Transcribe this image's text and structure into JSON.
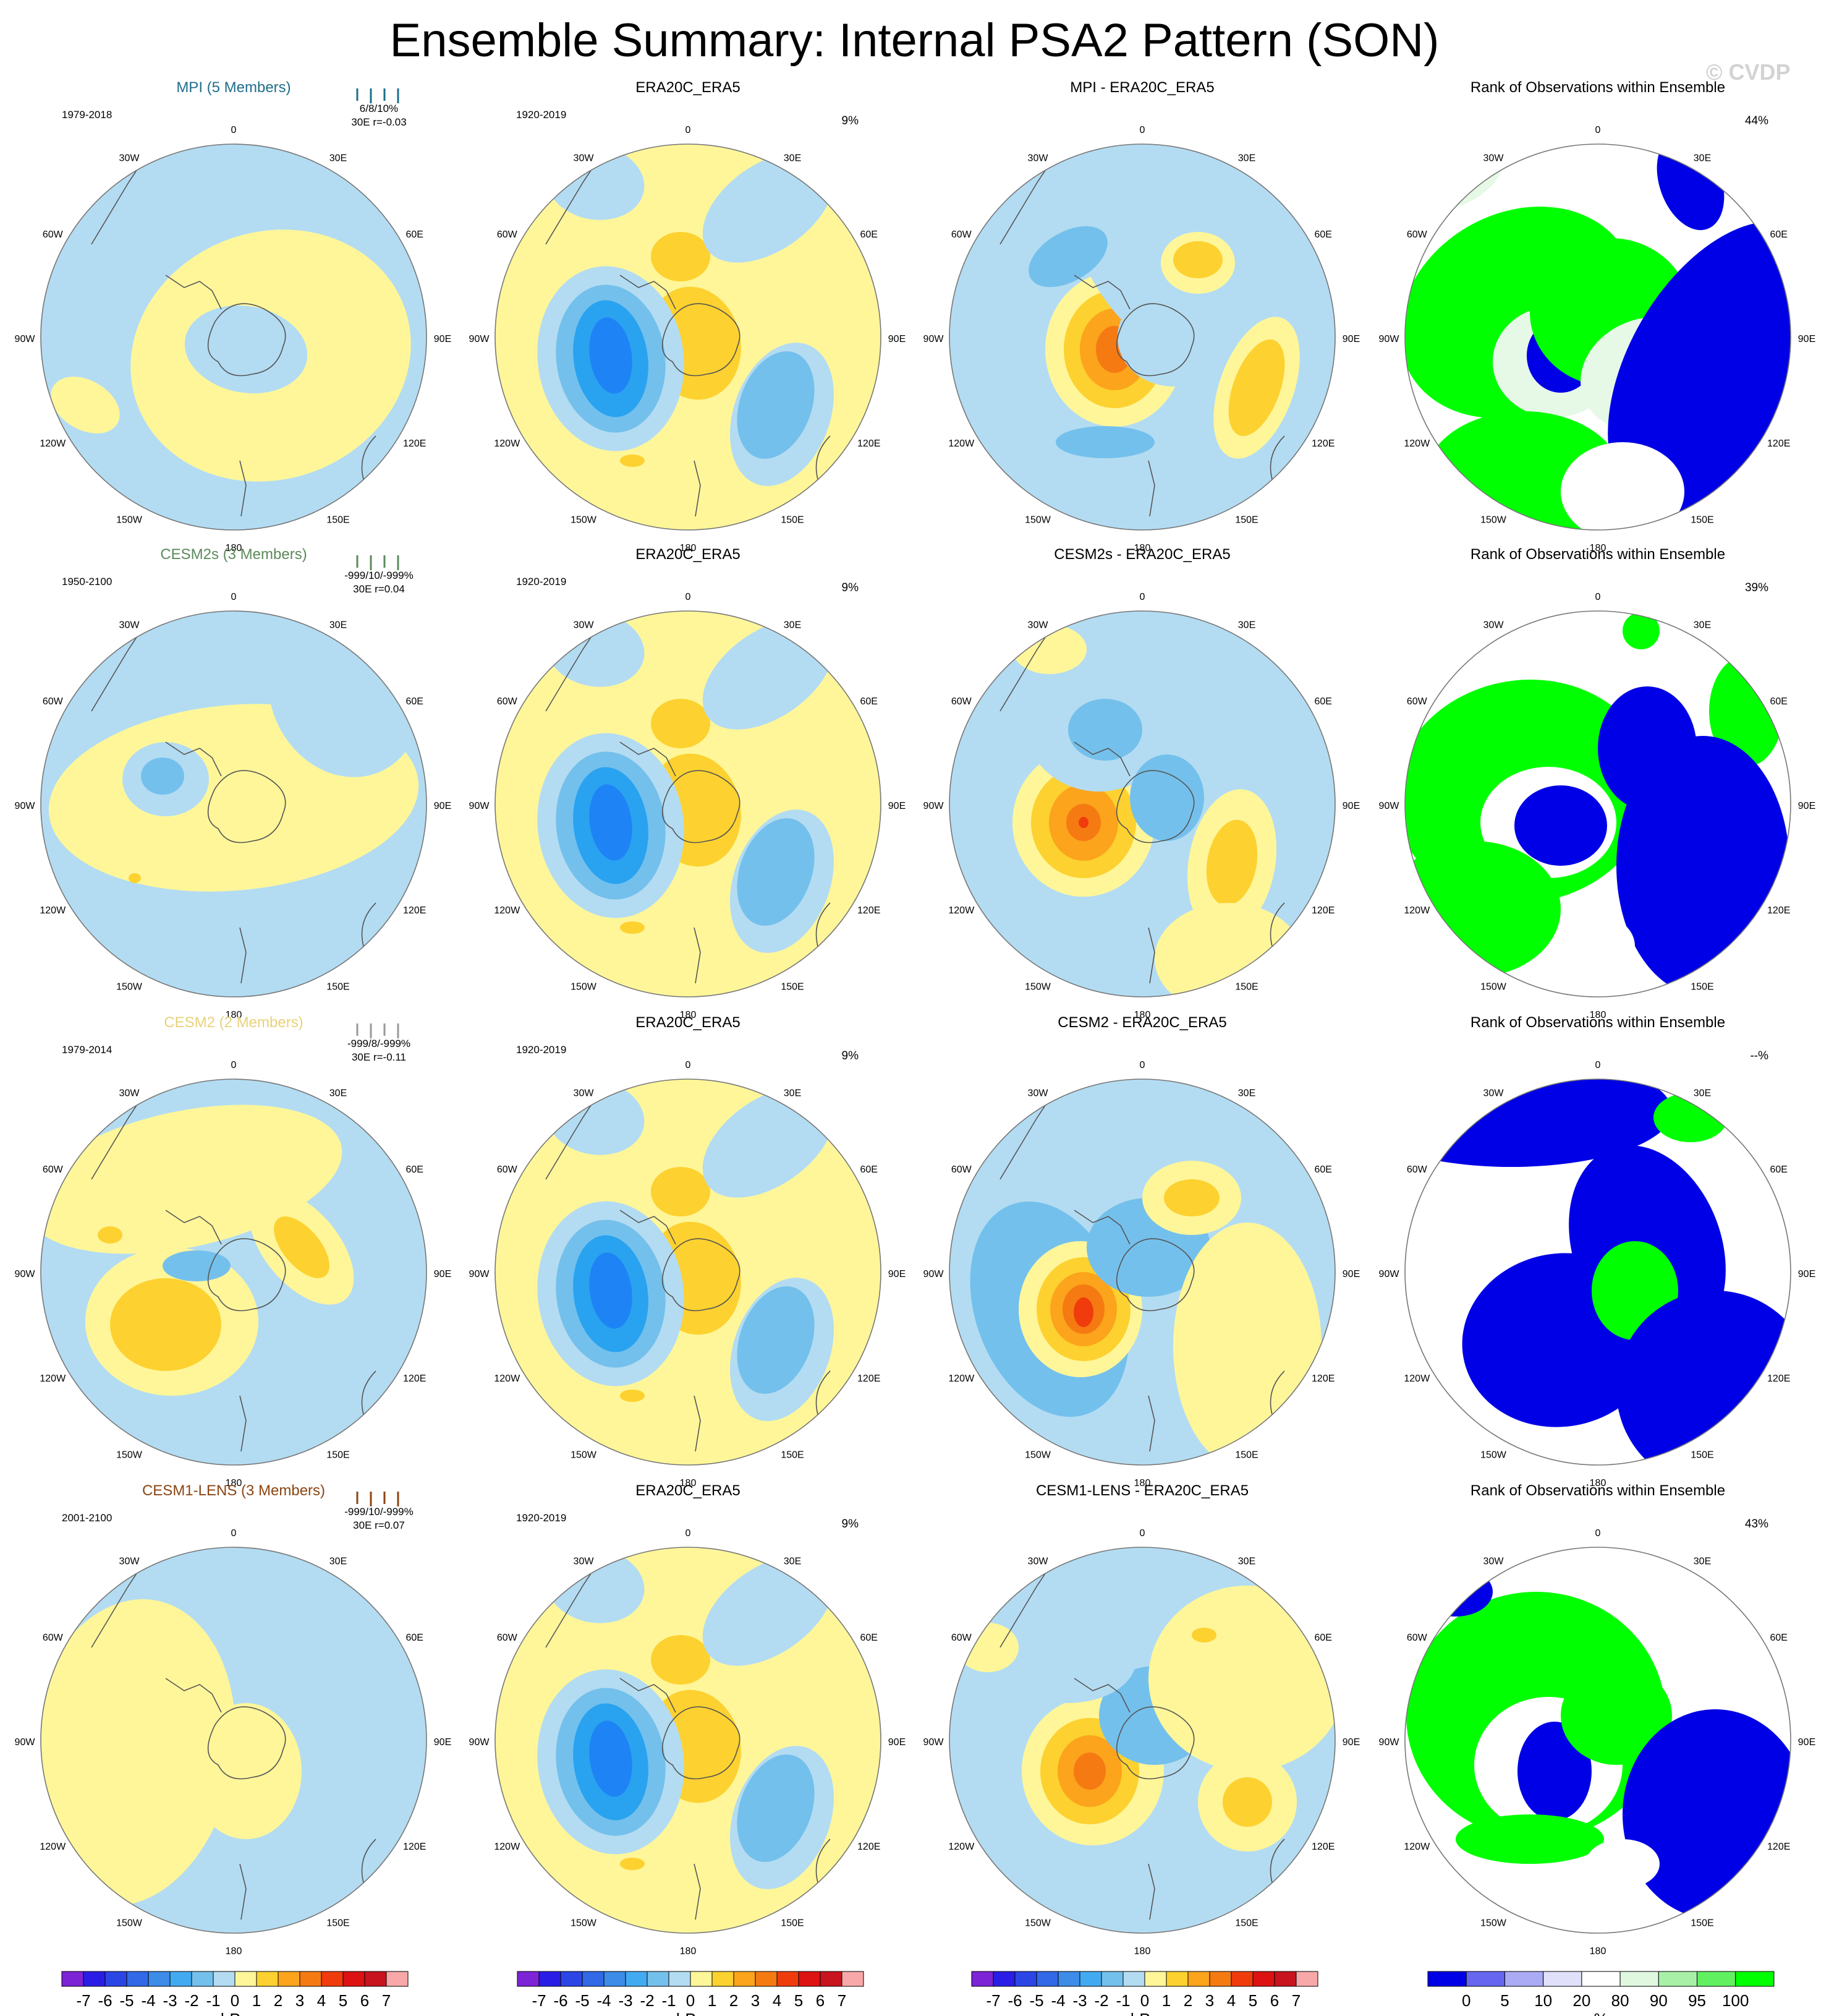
{
  "title": "Ensemble Summary: Internal PSA2 Pattern (SON)",
  "copyright": "© CVDP",
  "colors": {
    "ocean_blue_1": "#b3dcf2",
    "blue_2": "#74c0ec",
    "blue_3": "#29a3f0",
    "blue_4": "#1e84f5",
    "yellow_1": "#fff69a",
    "yellow_2": "#fdd12f",
    "orange_3": "#fba41c",
    "orange_4": "#f57a12",
    "red_5": "#f03c0c",
    "rank_green": "#00ff00",
    "rank_blue": "#0000e6",
    "rank_pale": "#e6f8e6"
  },
  "colorbar_hpa": {
    "labels": [
      "-7",
      "-6",
      "-5",
      "-4",
      "-3",
      "-2",
      "-1",
      "0",
      "1",
      "2",
      "3",
      "4",
      "5",
      "6",
      "7"
    ],
    "colors": [
      "#7c24d6",
      "#2a1ee6",
      "#2c46e6",
      "#3169e6",
      "#3c8ce8",
      "#42aaf0",
      "#74c0ec",
      "#b3dcf2",
      "#fff69a",
      "#fdd12f",
      "#fba41c",
      "#f57a12",
      "#f03c0c",
      "#dd1212",
      "#c8141e",
      "#f8a8a8"
    ],
    "unit": "hPa"
  },
  "colorbar_rank": {
    "labels": [
      "0",
      "5",
      "10",
      "20",
      "80",
      "90",
      "95",
      "100"
    ],
    "colors": [
      "#0000e6",
      "#6666f0",
      "#aaaaf5",
      "#e0e0fa",
      "#ffffff",
      "#e0f8e0",
      "#a8f0a8",
      "#60f060",
      "#00ff00"
    ],
    "unit": "%"
  },
  "meridian_labels": [
    "0",
    "30E",
    "60E",
    "90E",
    "120E",
    "150E",
    "180",
    "150W",
    "120W",
    "90W",
    "60W",
    "30W"
  ],
  "rows": [
    {
      "model": {
        "title": "MPI (5 Members)",
        "title_color": "#1e6e8c",
        "years": "1979-2018",
        "stats1": "6/8/10%",
        "stats2": "30E    r=-0.03",
        "stats_color": "#1e6e8c"
      },
      "obs": {
        "title": "ERA20C_ERA5",
        "years": "1920-2019",
        "pct": "9%"
      },
      "diff": {
        "title": "MPI - ERA20C_ERA5"
      },
      "rank": {
        "title": "Rank of Observations within Ensemble",
        "pct": "44%"
      }
    },
    {
      "model": {
        "title": "CESM2s (3 Members)",
        "title_color": "#5b8a5b",
        "years": "1950-2100",
        "stats1": "-999/10/-999%",
        "stats2": "30E r=0.04",
        "stats_color": "#5b8a5b"
      },
      "obs": {
        "title": "ERA20C_ERA5",
        "years": "1920-2019",
        "pct": "9%"
      },
      "diff": {
        "title": "CESM2s - ERA20C_ERA5"
      },
      "rank": {
        "title": "Rank of Observations within Ensemble",
        "pct": "39%"
      }
    },
    {
      "model": {
        "title": "CESM2 (2 Members)",
        "title_color": "#e8d27a",
        "years": "1979-2014",
        "stats1": "-999/8/-999%",
        "stats2": "30E  r=-0.11",
        "stats_color": "#999999"
      },
      "obs": {
        "title": "ERA20C_ERA5",
        "years": "1920-2019",
        "pct": "9%"
      },
      "diff": {
        "title": "CESM2 - ERA20C_ERA5"
      },
      "rank": {
        "title": "Rank of Observations within Ensemble",
        "pct": "--%"
      }
    },
    {
      "model": {
        "title": "CESM1-LENS (3 Members)",
        "title_color": "#8b4513",
        "years": "2001-2100",
        "stats1": "-999/10/-999%",
        "stats2": "30E r=0.07",
        "stats_color": "#8b4513"
      },
      "obs": {
        "title": "ERA20C_ERA5",
        "years": "1920-2019",
        "pct": "9%"
      },
      "diff": {
        "title": "CESM1-LENS - ERA20C_ERA5"
      },
      "rank": {
        "title": "Rank of Observations within Ensemble",
        "pct": "43%"
      }
    }
  ],
  "chart_data": {
    "type": "heatmap",
    "projection": "south-polar-stereographic",
    "variable": "PSA2 pattern (sea level pressure regression)",
    "unit": "hPa",
    "contour_levels": [
      -7,
      -6,
      -5,
      -4,
      -3,
      -2,
      -1,
      0,
      1,
      2,
      3,
      4,
      5,
      6,
      7
    ],
    "rank_levels": [
      0,
      5,
      10,
      20,
      80,
      90,
      95,
      100
    ],
    "panels": [
      {
        "row": 1,
        "col": 1,
        "title": "MPI (5 Members)",
        "years": "1979-2018",
        "stats": "6/8/10%",
        "pattern_correlation": -0.03
      },
      {
        "row": 1,
        "col": 2,
        "title": "ERA20C_ERA5",
        "years": "1920-2019",
        "pct_variance": 9
      },
      {
        "row": 1,
        "col": 3,
        "title": "MPI - ERA20C_ERA5"
      },
      {
        "row": 1,
        "col": 4,
        "title": "Rank of Observations within Ensemble",
        "pct": 44
      },
      {
        "row": 2,
        "col": 1,
        "title": "CESM2s (3 Members)",
        "years": "1950-2100",
        "stats": "-999/10/-999%",
        "pattern_correlation": 0.04
      },
      {
        "row": 2,
        "col": 2,
        "title": "ERA20C_ERA5",
        "years": "1920-2019",
        "pct_variance": 9
      },
      {
        "row": 2,
        "col": 3,
        "title": "CESM2s - ERA20C_ERA5"
      },
      {
        "row": 2,
        "col": 4,
        "title": "Rank of Observations within Ensemble",
        "pct": 39
      },
      {
        "row": 3,
        "col": 1,
        "title": "CESM2 (2 Members)",
        "years": "1979-2014",
        "stats": "-999/8/-999%",
        "pattern_correlation": -0.11
      },
      {
        "row": 3,
        "col": 2,
        "title": "ERA20C_ERA5",
        "years": "1920-2019",
        "pct_variance": 9
      },
      {
        "row": 3,
        "col": 3,
        "title": "CESM2 - ERA20C_ERA5"
      },
      {
        "row": 3,
        "col": 4,
        "title": "Rank of Observations within Ensemble",
        "pct": null
      },
      {
        "row": 4,
        "col": 1,
        "title": "CESM1-LENS (3 Members)",
        "years": "2001-2100",
        "stats": "-999/10/-999%",
        "pattern_correlation": 0.07
      },
      {
        "row": 4,
        "col": 2,
        "title": "ERA20C_ERA5",
        "years": "1920-2019",
        "pct_variance": 9
      },
      {
        "row": 4,
        "col": 3,
        "title": "CESM1-LENS - ERA20C_ERA5"
      },
      {
        "row": 4,
        "col": 4,
        "title": "Rank of Observations within Ensemble",
        "pct": 43
      }
    ]
  }
}
